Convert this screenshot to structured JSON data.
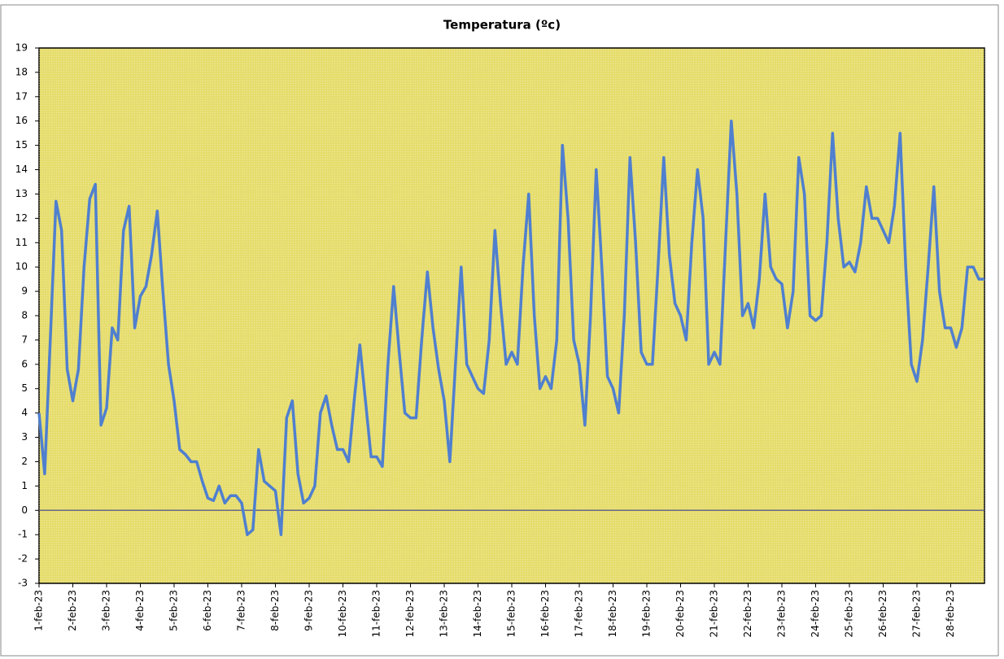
{
  "chart_data": {
    "type": "line",
    "title": "Temperatura (ºc)",
    "x": [
      0,
      4,
      8,
      12,
      16,
      20,
      24,
      28,
      32,
      36,
      40,
      44,
      48,
      52,
      56,
      60,
      64,
      68,
      72,
      76,
      80,
      84,
      88,
      92,
      96,
      100,
      104,
      108,
      112,
      116,
      120,
      124,
      128,
      132,
      136,
      140,
      144,
      148,
      152,
      156,
      160,
      164,
      168,
      172,
      176,
      180,
      184,
      188,
      192,
      196,
      200,
      204,
      208,
      212,
      216,
      220,
      224,
      228,
      232,
      236,
      240,
      244,
      248,
      252,
      256,
      260,
      264,
      268,
      272,
      276,
      280,
      284,
      288,
      292,
      296,
      300,
      304,
      308,
      312,
      316,
      320,
      324,
      328,
      332,
      336,
      340,
      344,
      348,
      352,
      356,
      360,
      364,
      368,
      372,
      376,
      380,
      384,
      388,
      392,
      396,
      400,
      404,
      408,
      412,
      416,
      420,
      424,
      428,
      432,
      436,
      440,
      444,
      448,
      452,
      456,
      460,
      464,
      468,
      472,
      476,
      480,
      484,
      488,
      492,
      496,
      500,
      504,
      508,
      512,
      516,
      520,
      524,
      528,
      532,
      536,
      540,
      544,
      548,
      552,
      556,
      560,
      564,
      568,
      572,
      576,
      580,
      584,
      588,
      592,
      596,
      600,
      604,
      608,
      612,
      616,
      620,
      624,
      628,
      632,
      636,
      640,
      644,
      648,
      652,
      656,
      660,
      664,
      668,
      672
    ],
    "series": [
      {
        "name": "Temperatura",
        "color": "#4f7fcf",
        "values": [
          4,
          1.5,
          7,
          12.7,
          11.5,
          5.8,
          4.5,
          5.8,
          10,
          12.8,
          13.4,
          3.5,
          4.2,
          7.5,
          7,
          11.5,
          12.5,
          7.5,
          8.8,
          9.2,
          10.5,
          12.3,
          9,
          6,
          4.5,
          2.5,
          2.3,
          2,
          2,
          1.2,
          0.5,
          0.4,
          1,
          0.3,
          0.6,
          0.6,
          0.3,
          -1,
          -0.8,
          2.5,
          1.2,
          1,
          0.8,
          -1,
          3.8,
          4.5,
          1.5,
          0.3,
          0.5,
          1,
          4,
          4.7,
          3.5,
          2.5,
          2.5,
          2,
          4.5,
          6.8,
          4.5,
          2.2,
          2.2,
          1.8,
          6,
          9.2,
          6.5,
          4,
          3.8,
          3.8,
          7,
          9.8,
          7.5,
          5.8,
          4.5,
          2,
          6,
          10,
          6,
          5.5,
          5,
          4.8,
          7,
          11.5,
          8.5,
          6,
          6.5,
          6,
          10,
          13,
          8,
          5,
          5.5,
          5,
          7,
          15,
          12,
          7,
          6,
          3.5,
          8,
          14,
          10,
          5.5,
          5,
          4,
          8,
          14.5,
          11,
          6.5,
          6,
          6,
          10,
          14.5,
          10.5,
          8.5,
          8,
          7,
          11,
          14,
          12,
          6,
          6.5,
          6,
          11,
          16,
          13,
          8,
          8.5,
          7.5,
          9.5,
          13,
          10,
          9.5,
          9.3,
          7.5,
          9,
          14.5,
          13,
          8,
          7.8,
          8,
          11,
          15.5,
          12,
          10,
          10.2,
          9.8,
          11,
          13.3,
          12,
          12,
          11.5,
          11,
          12.5,
          15.5,
          10,
          6,
          5.3,
          7,
          10,
          13.3,
          9,
          7.5,
          7.5,
          6.7,
          7.5,
          10,
          10,
          9.5,
          9.5
        ]
      }
    ],
    "xlim": [
      0,
      672
    ],
    "xticks": [
      {
        "value": 0,
        "label": "1-feb-23"
      },
      {
        "value": 24,
        "label": "2-feb-23"
      },
      {
        "value": 48,
        "label": "3-feb-23"
      },
      {
        "value": 72,
        "label": "4-feb-23"
      },
      {
        "value": 96,
        "label": "5-feb-23"
      },
      {
        "value": 120,
        "label": "6-feb-23"
      },
      {
        "value": 144,
        "label": "7-feb-23"
      },
      {
        "value": 168,
        "label": "8-feb-23"
      },
      {
        "value": 192,
        "label": "9-feb-23"
      },
      {
        "value": 216,
        "label": "10-feb-23"
      },
      {
        "value": 240,
        "label": "11-feb-23"
      },
      {
        "value": 264,
        "label": "12-feb-23"
      },
      {
        "value": 288,
        "label": "13-feb-23"
      },
      {
        "value": 312,
        "label": "14-feb-23"
      },
      {
        "value": 336,
        "label": "15-feb-23"
      },
      {
        "value": 360,
        "label": "16-feb-23"
      },
      {
        "value": 384,
        "label": "17-feb-23"
      },
      {
        "value": 408,
        "label": "18-feb-23"
      },
      {
        "value": 432,
        "label": "19-feb-23"
      },
      {
        "value": 456,
        "label": "20-feb-23"
      },
      {
        "value": 480,
        "label": "21-feb-23"
      },
      {
        "value": 504,
        "label": "22-feb-23"
      },
      {
        "value": 528,
        "label": "23-feb-23"
      },
      {
        "value": 552,
        "label": "24-feb-23"
      },
      {
        "value": 576,
        "label": "25-feb-23"
      },
      {
        "value": 600,
        "label": "26-feb-23"
      },
      {
        "value": 624,
        "label": "27-feb-23"
      },
      {
        "value": 648,
        "label": "28-feb-23"
      }
    ],
    "ylim": [
      -3,
      19
    ],
    "yticks": [
      -3,
      -2,
      -1,
      0,
      1,
      2,
      3,
      4,
      5,
      6,
      7,
      8,
      9,
      10,
      11,
      12,
      13,
      14,
      15,
      16,
      17,
      18,
      19
    ],
    "plot_background": "#e6dd6e"
  }
}
